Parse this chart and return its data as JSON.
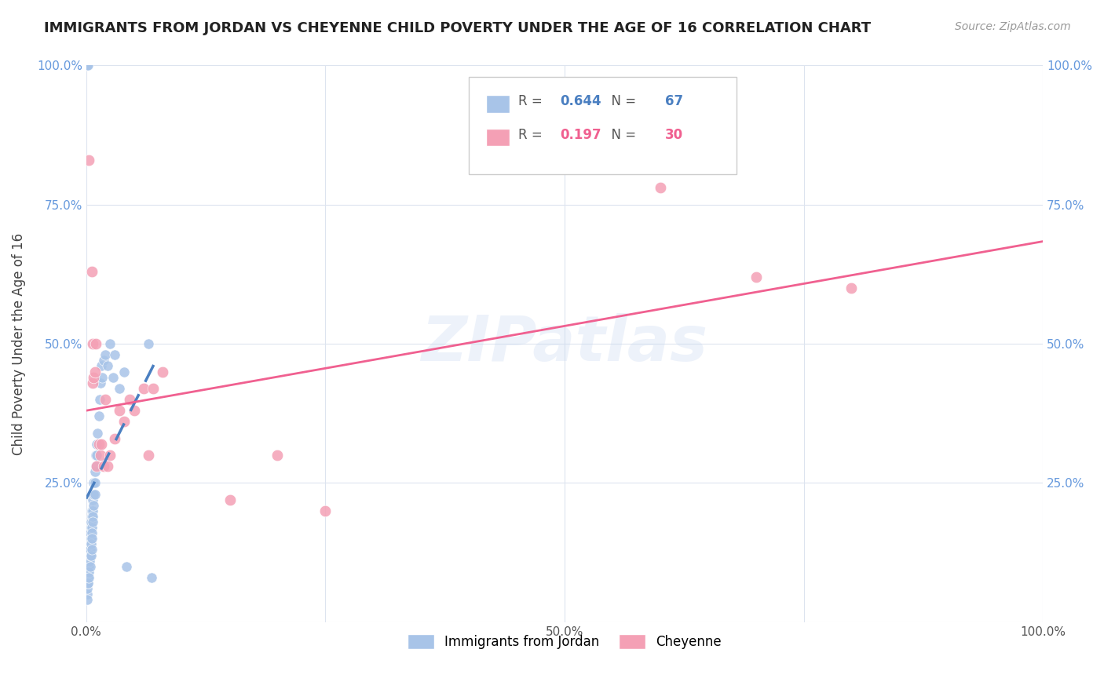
{
  "title": "IMMIGRANTS FROM JORDAN VS CHEYENNE CHILD POVERTY UNDER THE AGE OF 16 CORRELATION CHART",
  "source": "Source: ZipAtlas.com",
  "ylabel": "Child Poverty Under the Age of 16",
  "legend_labels": [
    "Immigrants from Jordan",
    "Cheyenne"
  ],
  "blue_R": "0.644",
  "blue_N": "67",
  "pink_R": "0.197",
  "pink_N": "30",
  "blue_color": "#a8c4e8",
  "pink_color": "#f4a0b5",
  "blue_line_color": "#4a7fc1",
  "pink_line_color": "#f06090",
  "watermark": "ZIPatlas",
  "blue_points_x": [
    0.0008,
    0.001,
    0.001,
    0.0012,
    0.0013,
    0.0015,
    0.0015,
    0.002,
    0.002,
    0.002,
    0.0022,
    0.0025,
    0.003,
    0.003,
    0.003,
    0.003,
    0.0032,
    0.0035,
    0.004,
    0.004,
    0.004,
    0.004,
    0.0042,
    0.0045,
    0.005,
    0.005,
    0.005,
    0.005,
    0.0052,
    0.006,
    0.006,
    0.006,
    0.006,
    0.006,
    0.0062,
    0.007,
    0.007,
    0.007,
    0.007,
    0.0072,
    0.008,
    0.008,
    0.008,
    0.009,
    0.009,
    0.009,
    0.01,
    0.01,
    0.011,
    0.011,
    0.012,
    0.013,
    0.014,
    0.015,
    0.016,
    0.017,
    0.018,
    0.02,
    0.022,
    0.025,
    0.028,
    0.03,
    0.035,
    0.04,
    0.042,
    0.065,
    0.068
  ],
  "blue_points_y": [
    0.05,
    1.0,
    1.0,
    0.04,
    0.06,
    1.0,
    0.07,
    0.08,
    0.09,
    0.1,
    0.07,
    0.11,
    0.12,
    0.1,
    0.09,
    0.08,
    0.13,
    0.11,
    0.15,
    0.14,
    0.12,
    0.1,
    0.16,
    0.13,
    0.17,
    0.15,
    0.14,
    0.12,
    0.18,
    0.19,
    0.17,
    0.16,
    0.15,
    0.13,
    0.2,
    0.22,
    0.2,
    0.19,
    0.18,
    0.23,
    0.25,
    0.23,
    0.21,
    0.27,
    0.25,
    0.23,
    0.3,
    0.28,
    0.32,
    0.3,
    0.34,
    0.37,
    0.4,
    0.43,
    0.46,
    0.44,
    0.47,
    0.48,
    0.46,
    0.5,
    0.44,
    0.48,
    0.42,
    0.45,
    0.1,
    0.5,
    0.08
  ],
  "pink_points_x": [
    0.003,
    0.006,
    0.007,
    0.007,
    0.008,
    0.009,
    0.01,
    0.011,
    0.013,
    0.015,
    0.016,
    0.018,
    0.02,
    0.022,
    0.025,
    0.03,
    0.035,
    0.04,
    0.045,
    0.05,
    0.06,
    0.065,
    0.07,
    0.08,
    0.6,
    0.7,
    0.8,
    0.15,
    0.2,
    0.25
  ],
  "pink_points_y": [
    0.83,
    0.63,
    0.5,
    0.43,
    0.44,
    0.45,
    0.5,
    0.28,
    0.32,
    0.3,
    0.32,
    0.28,
    0.4,
    0.28,
    0.3,
    0.33,
    0.38,
    0.36,
    0.4,
    0.38,
    0.42,
    0.3,
    0.42,
    0.45,
    0.78,
    0.62,
    0.6,
    0.22,
    0.3,
    0.2
  ],
  "xlim": [
    0.0,
    1.0
  ],
  "ylim": [
    0.0,
    1.0
  ],
  "background_color": "#ffffff",
  "grid_color": "#dde4ef"
}
